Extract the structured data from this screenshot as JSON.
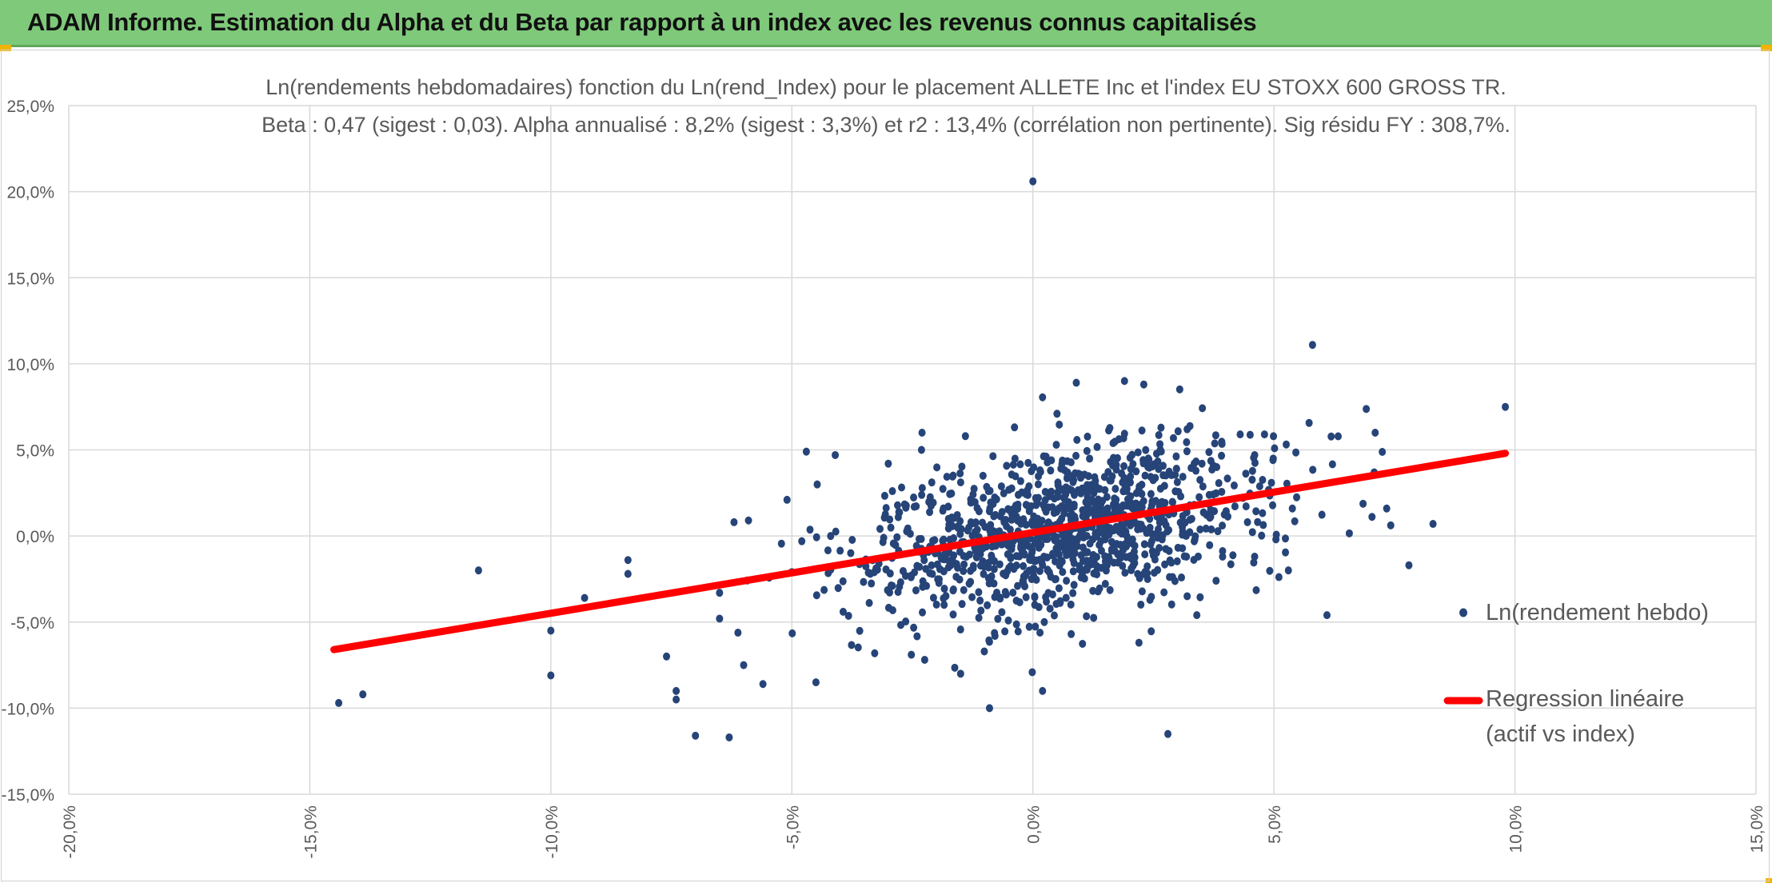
{
  "header": {
    "title": "ADAM Informe. Estimation du Alpha et du Beta par rapport à un index avec les revenus connus capitalisés"
  },
  "colors": {
    "header_bg": "#7fc97a",
    "points": "#264478",
    "regression": "#ff0000",
    "grid": "#d9d9d9",
    "text": "#595959"
  },
  "chart_data": {
    "type": "scatter",
    "title_line1": "Ln(rendements hebdomadaires) fonction du Ln(rend_Index) pour le placement ALLETE Inc et l'index EU STOXX 600 GROSS TR.",
    "title_line2": "Beta : 0,47 (sigest : 0,03). Alpha annualisé : 8,2% (sigest : 3,3%) et r2 : 13,4% (corrélation non pertinente). Sig résidu FY : 308,7%.",
    "xlim": [
      -20,
      15
    ],
    "ylim": [
      -15,
      25
    ],
    "x_ticks": [
      "-20,0%",
      "-15,0%",
      "-10,0%",
      "-5,0%",
      "0,0%",
      "5,0%",
      "10,0%",
      "15,0%"
    ],
    "y_ticks": [
      "25,0%",
      "20,0%",
      "15,0%",
      "10,0%",
      "5,0%",
      "0,0%",
      "-5,0%",
      "-10,0%",
      "-15,0%"
    ],
    "grid": true,
    "legend": {
      "position": "right",
      "items": [
        {
          "label": "Ln(rendement hebdo)",
          "marker": "point"
        },
        {
          "label_line1": "Regression linéaire",
          "label_line2": "(actif vs index)",
          "marker": "line"
        }
      ]
    },
    "series": [
      {
        "name": "Ln(rendement hebdo)",
        "kind": "scatter",
        "sample_points": [
          [
            0.0,
            20.6
          ],
          [
            5.8,
            11.1
          ],
          [
            9.8,
            7.5
          ],
          [
            7.1,
            6.0
          ],
          [
            8.3,
            0.7
          ],
          [
            7.8,
            -1.7
          ],
          [
            6.1,
            -4.6
          ],
          [
            5.3,
            -2.0
          ],
          [
            2.8,
            -11.5
          ],
          [
            -0.9,
            -10.0
          ],
          [
            -6.3,
            -11.7
          ],
          [
            -7.0,
            -11.6
          ],
          [
            -7.4,
            -9.5
          ],
          [
            -7.4,
            -9.0
          ],
          [
            -7.6,
            -7.0
          ],
          [
            -14.4,
            -9.7
          ],
          [
            -13.9,
            -9.2
          ],
          [
            -11.5,
            -2.0
          ],
          [
            -10.0,
            -5.5
          ],
          [
            -10.0,
            -8.1
          ],
          [
            -9.3,
            -3.6
          ],
          [
            -8.4,
            -2.2
          ],
          [
            -8.4,
            -1.4
          ],
          [
            -6.5,
            -3.3
          ],
          [
            -6.5,
            -4.8
          ],
          [
            -6.2,
            0.8
          ],
          [
            -5.9,
            0.9
          ],
          [
            -5.6,
            -8.6
          ],
          [
            -6.0,
            -7.5
          ],
          [
            -4.5,
            -8.5
          ],
          [
            -4.7,
            4.9
          ],
          [
            -3.0,
            4.2
          ],
          [
            -2.3,
            6.0
          ],
          [
            -1.4,
            5.8
          ],
          [
            0.5,
            7.1
          ],
          [
            0.9,
            8.9
          ],
          [
            1.9,
            9.0
          ],
          [
            2.3,
            8.8
          ],
          [
            3.2,
            6.2
          ],
          [
            4.3,
            5.9
          ],
          [
            4.6,
            4.7
          ],
          [
            3.8,
            -2.6
          ],
          [
            3.4,
            -4.6
          ],
          [
            2.2,
            -6.2
          ],
          [
            0.2,
            -9.0
          ],
          [
            -1.5,
            -8.0
          ],
          [
            -5.1,
            2.1
          ],
          [
            -5.0,
            -2.1
          ],
          [
            -4.1,
            4.7
          ],
          [
            4.6,
            -1.2
          ],
          [
            3.2,
            -3.5
          ]
        ]
      },
      {
        "name": "Regression linéaire (actif vs index)",
        "kind": "line",
        "x": [
          -14.5,
          9.8
        ],
        "y": [
          -6.6,
          4.8
        ]
      }
    ]
  }
}
